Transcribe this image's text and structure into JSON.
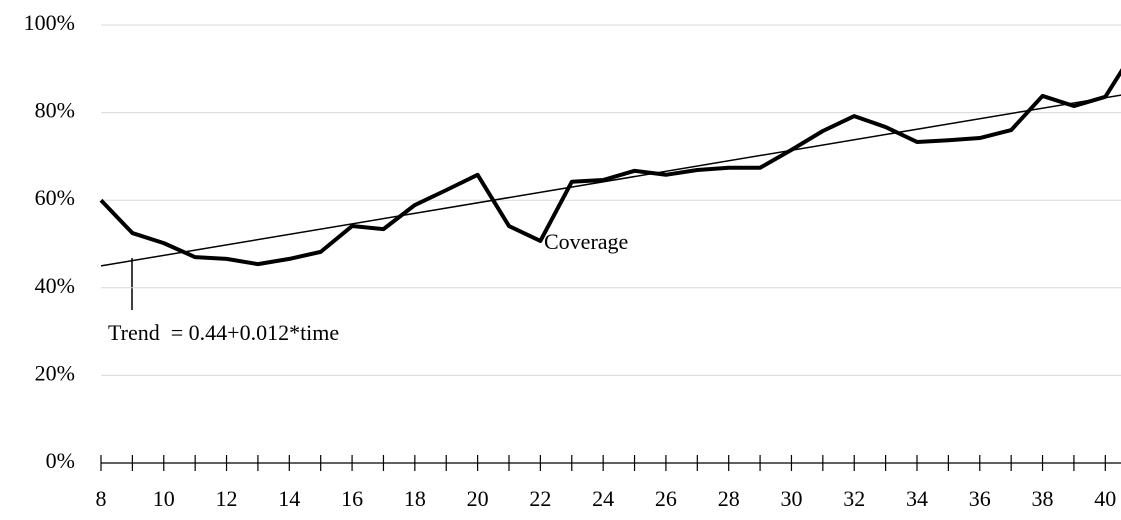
{
  "chart_data": {
    "type": "line",
    "series": [
      {
        "name": "Coverage",
        "color": "#000000",
        "x": [
          8,
          9,
          10,
          11,
          12,
          13,
          14,
          15,
          16,
          17,
          18,
          19,
          20,
          21,
          22,
          23,
          24,
          25,
          26,
          27,
          28,
          29,
          30,
          31,
          32,
          33,
          34,
          35,
          36,
          37,
          38,
          39,
          40,
          41
        ],
        "values": [
          60.0,
          52.5,
          50.2,
          47.0,
          46.6,
          45.4,
          46.6,
          48.2,
          54.1,
          53.4,
          58.9,
          62.3,
          65.8,
          54.1,
          50.7,
          64.2,
          64.6,
          66.7,
          65.8,
          66.9,
          67.4,
          67.4,
          71.5,
          75.8,
          79.2,
          76.7,
          73.3,
          73.7,
          74.2,
          76.0,
          83.8,
          81.5,
          83.6,
          95.0
        ]
      },
      {
        "name": "Trend  = 0.44+0.012*time",
        "color": "#000000",
        "x": [
          8,
          41
        ],
        "values": [
          45.0,
          84.6
        ]
      }
    ],
    "xlim": [
      8,
      40.5
    ],
    "xticks": [
      8,
      10,
      12,
      14,
      16,
      18,
      20,
      22,
      24,
      26,
      28,
      30,
      32,
      34,
      36,
      38,
      40
    ],
    "xminor_ticks": [
      9,
      11,
      13,
      15,
      17,
      19,
      21,
      23,
      25,
      27,
      29,
      31,
      33,
      35,
      37,
      39
    ],
    "ylim": [
      0,
      100
    ],
    "yticks": [
      {
        "value": 0,
        "label": "0%"
      },
      {
        "value": 20,
        "label": "20%"
      },
      {
        "value": 40,
        "label": "40%"
      },
      {
        "value": 60,
        "label": "60%"
      },
      {
        "value": 80,
        "label": "80%"
      },
      {
        "value": 100,
        "label": "100%"
      }
    ],
    "grid": true
  }
}
